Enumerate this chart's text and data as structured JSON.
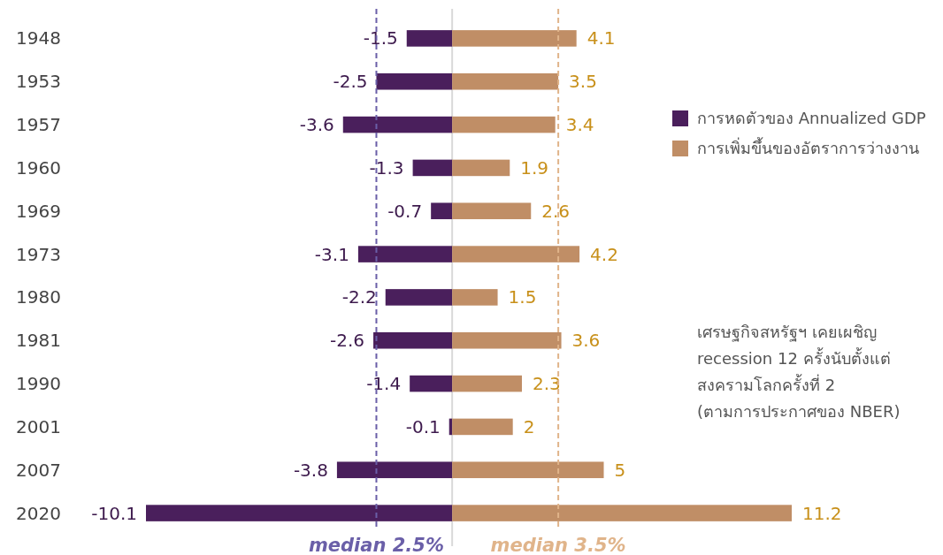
{
  "chart_data": {
    "type": "bar",
    "orientation": "horizontal",
    "stacked": true,
    "data_labels": true,
    "tick_labels": "y",
    "legend": "top right",
    "categories": [
      "1948",
      "1953",
      "1957",
      "1960",
      "1969",
      "1973",
      "1980",
      "1981",
      "1990",
      "2001",
      "2007",
      "2020"
    ],
    "series": [
      {
        "name": "การหดตัวของ Annualized GDP",
        "color": "#4a1f5c",
        "values": [
          -1.5,
          -2.5,
          -3.6,
          -1.3,
          -0.7,
          -3.1,
          -2.2,
          -2.6,
          -1.4,
          -0.1,
          -3.8,
          -10.1
        ]
      },
      {
        "name": "การเพิ่มขึ้นของอัตราการว่างงาน",
        "color": "#c08e66",
        "values": [
          4.1,
          3.5,
          3.4,
          1.9,
          2.6,
          4.2,
          1.5,
          3.6,
          2.3,
          2,
          5,
          11.2
        ]
      }
    ],
    "ref_lines": [
      {
        "axis": "x",
        "value": -2.5,
        "label": "median 2.5%",
        "color": "#6a5fa8",
        "line_style": "dashed"
      },
      {
        "axis": "x",
        "value": 3.5,
        "label": "median 3.5%",
        "color": "#e0b48a",
        "line_style": "dashed"
      }
    ],
    "annotations": [
      "เศรษฐกิจสหรัฐฯ เคยเผชิญ\nrecession 12 ครั้งนับตั้งแต่\nสงครามโลกครั้งที่ 2\n(ตามการประกาศของ NBER)"
    ]
  }
}
